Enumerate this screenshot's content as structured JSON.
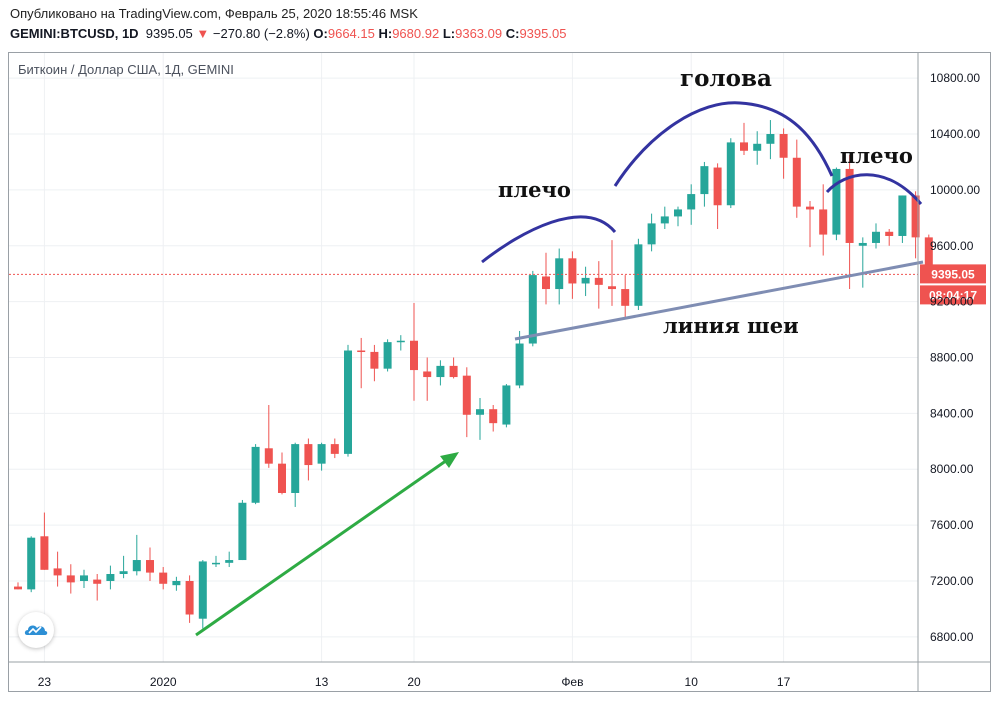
{
  "header": {
    "published": "Опубликовано на TradingView.com, Февраль 25, 2020 18:55:46 MSK",
    "symbol": "GEMINI:BTCUSD, 1D",
    "last": "9395.05",
    "change": "−270.80 (−2.8%)",
    "o_label": "O:",
    "o_value": "9664.15",
    "h_label": "H:",
    "h_value": "9680.92",
    "l_label": "L:",
    "l_value": "9363.09",
    "c_label": "C:",
    "c_value": "9395.05"
  },
  "chart_title": "Биткоин / Доллар США, 1Д, GEMINI",
  "colors": {
    "up": "#26a69a",
    "down": "#ef5350",
    "arc": "#3333a0",
    "neckline": "#7f8db3",
    "trend": "#2eab44"
  },
  "chart_data": {
    "type": "candlestick",
    "ylim": [
      6620,
      10980
    ],
    "y_ticks": [
      6800,
      7200,
      7600,
      8000,
      8400,
      8800,
      9200,
      9600,
      10000,
      10400,
      10800
    ],
    "y_tick_labels": [
      "6800.00",
      "7200.00",
      "7600.00",
      "8000.00",
      "8400.00",
      "8800.00",
      "9200.00",
      "9600.00",
      "10000.00",
      "10400.00",
      "10800.00"
    ],
    "x_tick_labels": [
      {
        "label": "23",
        "day": 2
      },
      {
        "label": "2020",
        "day": 11
      },
      {
        "label": "13",
        "day": 23
      },
      {
        "label": "20",
        "day": 30
      },
      {
        "label": "Фев",
        "day": 42
      },
      {
        "label": "10",
        "day": 51
      },
      {
        "label": "17",
        "day": 58
      }
    ],
    "last_price_label": "9395.05",
    "countdown": "08:04:17",
    "candles": [
      {
        "o": 7160,
        "h": 7190,
        "l": 7140,
        "c": 7140
      },
      {
        "o": 7140,
        "h": 7520,
        "l": 7120,
        "c": 7510
      },
      {
        "o": 7520,
        "h": 7690,
        "l": 7280,
        "c": 7280
      },
      {
        "o": 7290,
        "h": 7410,
        "l": 7160,
        "c": 7240
      },
      {
        "o": 7240,
        "h": 7320,
        "l": 7110,
        "c": 7190
      },
      {
        "o": 7200,
        "h": 7280,
        "l": 7150,
        "c": 7240
      },
      {
        "o": 7210,
        "h": 7250,
        "l": 7060,
        "c": 7180
      },
      {
        "o": 7200,
        "h": 7310,
        "l": 7140,
        "c": 7250
      },
      {
        "o": 7250,
        "h": 7380,
        "l": 7220,
        "c": 7270
      },
      {
        "o": 7270,
        "h": 7530,
        "l": 7240,
        "c": 7350
      },
      {
        "o": 7350,
        "h": 7440,
        "l": 7200,
        "c": 7260
      },
      {
        "o": 7260,
        "h": 7300,
        "l": 7140,
        "c": 7180
      },
      {
        "o": 7170,
        "h": 7230,
        "l": 7130,
        "c": 7200
      },
      {
        "o": 7200,
        "h": 7240,
        "l": 6900,
        "c": 6960
      },
      {
        "o": 6930,
        "h": 7350,
        "l": 6860,
        "c": 7340
      },
      {
        "o": 7320,
        "h": 7380,
        "l": 7300,
        "c": 7330
      },
      {
        "o": 7330,
        "h": 7410,
        "l": 7300,
        "c": 7350
      },
      {
        "o": 7350,
        "h": 7780,
        "l": 7350,
        "c": 7760
      },
      {
        "o": 7760,
        "h": 8180,
        "l": 7750,
        "c": 8160
      },
      {
        "o": 8150,
        "h": 8460,
        "l": 8010,
        "c": 8040
      },
      {
        "o": 8040,
        "h": 8120,
        "l": 7820,
        "c": 7830
      },
      {
        "o": 7830,
        "h": 8190,
        "l": 7730,
        "c": 8180
      },
      {
        "o": 8180,
        "h": 8220,
        "l": 7920,
        "c": 8030
      },
      {
        "o": 8040,
        "h": 8190,
        "l": 7990,
        "c": 8180
      },
      {
        "o": 8180,
        "h": 8220,
        "l": 8080,
        "c": 8110
      },
      {
        "o": 8110,
        "h": 8890,
        "l": 8090,
        "c": 8850
      },
      {
        "o": 8850,
        "h": 8940,
        "l": 8580,
        "c": 8840
      },
      {
        "o": 8840,
        "h": 8890,
        "l": 8630,
        "c": 8720
      },
      {
        "o": 8720,
        "h": 8930,
        "l": 8700,
        "c": 8910
      },
      {
        "o": 8910,
        "h": 8960,
        "l": 8850,
        "c": 8920
      },
      {
        "o": 8920,
        "h": 9190,
        "l": 8490,
        "c": 8710
      },
      {
        "o": 8700,
        "h": 8800,
        "l": 8490,
        "c": 8660
      },
      {
        "o": 8660,
        "h": 8780,
        "l": 8600,
        "c": 8740
      },
      {
        "o": 8740,
        "h": 8800,
        "l": 8650,
        "c": 8660
      },
      {
        "o": 8670,
        "h": 8730,
        "l": 8230,
        "c": 8390
      },
      {
        "o": 8390,
        "h": 8510,
        "l": 8210,
        "c": 8430
      },
      {
        "o": 8430,
        "h": 8460,
        "l": 8270,
        "c": 8330
      },
      {
        "o": 8320,
        "h": 8610,
        "l": 8300,
        "c": 8600
      },
      {
        "o": 8600,
        "h": 8990,
        "l": 8580,
        "c": 8900
      },
      {
        "o": 8900,
        "h": 9420,
        "l": 8880,
        "c": 9390
      },
      {
        "o": 9380,
        "h": 9550,
        "l": 9180,
        "c": 9290
      },
      {
        "o": 9290,
        "h": 9580,
        "l": 9180,
        "c": 9510
      },
      {
        "o": 9510,
        "h": 9560,
        "l": 9220,
        "c": 9330
      },
      {
        "o": 9330,
        "h": 9450,
        "l": 9240,
        "c": 9370
      },
      {
        "o": 9370,
        "h": 9490,
        "l": 9150,
        "c": 9320
      },
      {
        "o": 9310,
        "h": 9640,
        "l": 9170,
        "c": 9290
      },
      {
        "o": 9290,
        "h": 9390,
        "l": 9080,
        "c": 9170
      },
      {
        "o": 9170,
        "h": 9650,
        "l": 9140,
        "c": 9610
      },
      {
        "o": 9610,
        "h": 9830,
        "l": 9560,
        "c": 9760
      },
      {
        "o": 9760,
        "h": 9880,
        "l": 9720,
        "c": 9810
      },
      {
        "o": 9810,
        "h": 9880,
        "l": 9740,
        "c": 9860
      },
      {
        "o": 9860,
        "h": 10040,
        "l": 9750,
        "c": 9970
      },
      {
        "o": 9970,
        "h": 10200,
        "l": 9880,
        "c": 10170
      },
      {
        "o": 10160,
        "h": 10190,
        "l": 9720,
        "c": 9890
      },
      {
        "o": 9890,
        "h": 10370,
        "l": 9870,
        "c": 10340
      },
      {
        "o": 10340,
        "h": 10480,
        "l": 10250,
        "c": 10280
      },
      {
        "o": 10280,
        "h": 10420,
        "l": 10180,
        "c": 10330
      },
      {
        "o": 10330,
        "h": 10500,
        "l": 10220,
        "c": 10400
      },
      {
        "o": 10400,
        "h": 10440,
        "l": 10080,
        "c": 10230
      },
      {
        "o": 10230,
        "h": 10360,
        "l": 9800,
        "c": 9880
      },
      {
        "o": 9880,
        "h": 9920,
        "l": 9590,
        "c": 9860
      },
      {
        "o": 9860,
        "h": 10040,
        "l": 9530,
        "c": 9680
      },
      {
        "o": 9680,
        "h": 10160,
        "l": 9640,
        "c": 10150
      },
      {
        "o": 10150,
        "h": 10250,
        "l": 9290,
        "c": 9620
      },
      {
        "o": 9600,
        "h": 9660,
        "l": 9300,
        "c": 9620
      },
      {
        "o": 9620,
        "h": 9760,
        "l": 9580,
        "c": 9700
      },
      {
        "o": 9700,
        "h": 9720,
        "l": 9600,
        "c": 9670
      },
      {
        "o": 9670,
        "h": 9960,
        "l": 9620,
        "c": 9960
      },
      {
        "o": 9960,
        "h": 9990,
        "l": 9510,
        "c": 9660
      },
      {
        "o": 9660,
        "h": 9680,
        "l": 9360,
        "c": 9395
      }
    ]
  },
  "annotations": {
    "left_shoulder": "плечо",
    "head": "голова",
    "right_shoulder": "плечо",
    "neckline": "линия шеи"
  }
}
